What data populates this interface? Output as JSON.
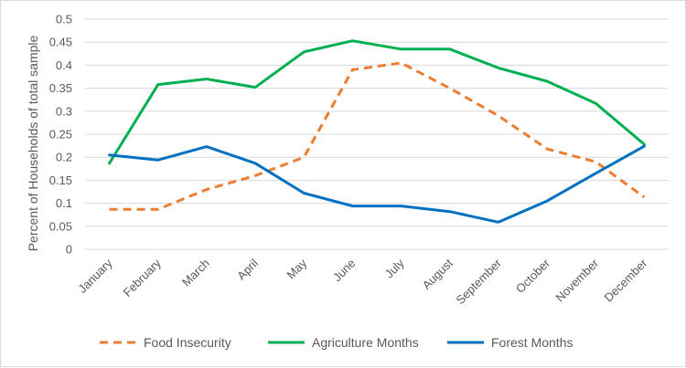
{
  "chart_data": {
    "type": "line",
    "title": "",
    "xlabel": "",
    "ylabel": "Percent of Households of total sample",
    "ylim": [
      0,
      0.5
    ],
    "yticks": [
      "0",
      "0.05",
      "0.1",
      "0.15",
      "0.2",
      "0.25",
      "0.3",
      "0.35",
      "0.4",
      "0.45",
      "0.5"
    ],
    "grid": true,
    "legend_position": "bottom",
    "categories": [
      "January",
      "February",
      "March",
      "April",
      "May",
      "June",
      "July",
      "August",
      "September",
      "October",
      "November",
      "December"
    ],
    "series": [
      {
        "name": "Food Insecurity",
        "color": "#ED7D31",
        "style": "dashed",
        "values": [
          0.087,
          0.087,
          0.13,
          0.16,
          0.2,
          0.39,
          0.405,
          0.35,
          0.29,
          0.218,
          0.19,
          0.113
        ]
      },
      {
        "name": "Agriculture Months",
        "color": "#00B050",
        "style": "solid",
        "values": [
          0.187,
          0.358,
          0.37,
          0.352,
          0.429,
          0.453,
          0.435,
          0.435,
          0.394,
          0.365,
          0.317,
          0.228
        ]
      },
      {
        "name": "Forest Months",
        "color": "#0070C0",
        "style": "solid",
        "values": [
          0.205,
          0.194,
          0.223,
          0.187,
          0.122,
          0.094,
          0.094,
          0.082,
          0.059,
          0.105,
          0.165,
          0.224
        ]
      }
    ]
  }
}
